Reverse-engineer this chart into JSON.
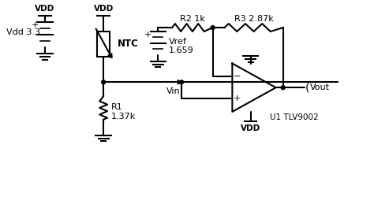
{
  "bg_color": "#ffffff",
  "line_color": "#000000",
  "line_width": 1.5,
  "labels": {
    "VDD1": "VDD",
    "VDD2": "VDD",
    "Vdd33": "Vdd 3.3",
    "NTC": "NTC",
    "R2": "R2 1k",
    "R3": "R3 2.87k",
    "Vref": "Vref\n1.659",
    "R1": "R1\n1.37k",
    "Vin": "Vin",
    "Vout": "Vout",
    "U1": "U1 TLV9002",
    "VDD_bot": "VDD"
  }
}
